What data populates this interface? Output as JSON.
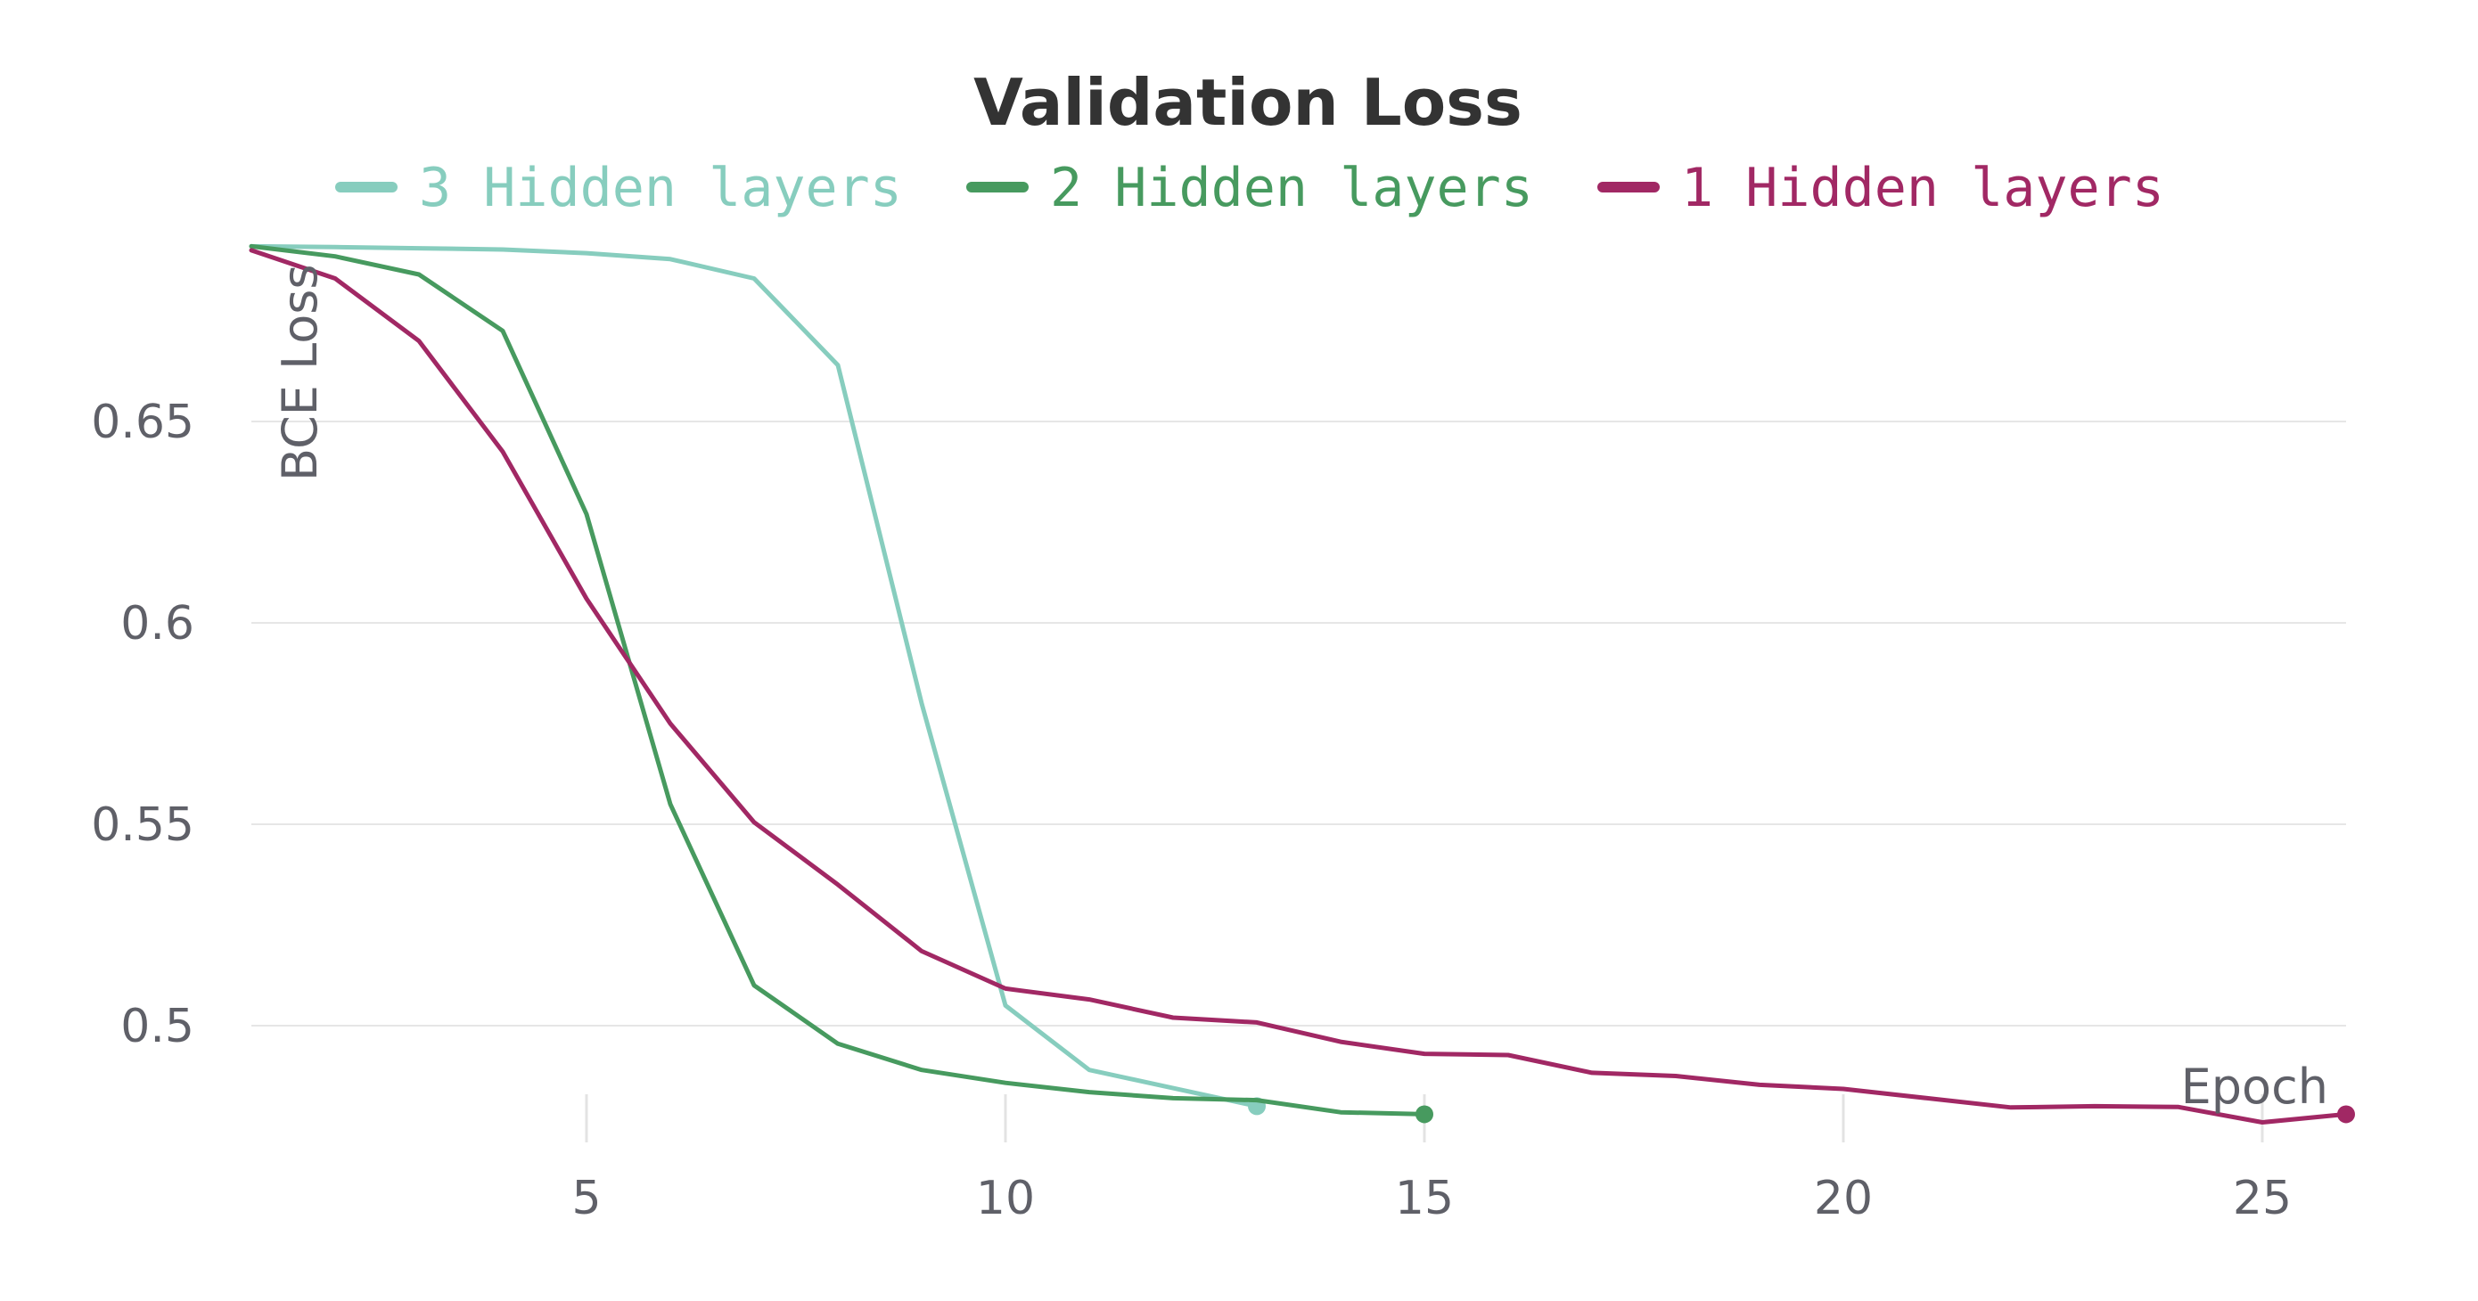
{
  "chart_data": {
    "type": "line",
    "title": "Validation Loss",
    "xlabel": "Epoch",
    "ylabel": "BCE Loss",
    "xlim": [
      1,
      26
    ],
    "ylim": [
      0.47,
      0.695
    ],
    "x_ticks": [
      5,
      10,
      15,
      20,
      25
    ],
    "y_ticks": [
      0.5,
      0.55,
      0.6,
      0.65
    ],
    "y_tick_labels": [
      "0.5",
      "0.55",
      "0.6",
      "0.65"
    ],
    "grid": "horizontal",
    "legend_position": "top",
    "series": [
      {
        "name": "3 Hidden layers",
        "color": "#87cdbe",
        "x": [
          1,
          2,
          3,
          4,
          5,
          6,
          7,
          8,
          9,
          10,
          11,
          12,
          13
        ],
        "y": [
          0.6935,
          0.6933,
          0.693,
          0.6927,
          0.6918,
          0.6903,
          0.6855,
          0.664,
          0.58,
          0.505,
          0.489,
          0.4845,
          0.48
        ]
      },
      {
        "name": "2 Hidden layers",
        "color": "#479a5f",
        "x": [
          1,
          2,
          3,
          4,
          5,
          6,
          7,
          8,
          9,
          10,
          11,
          12,
          13,
          14,
          15
        ],
        "y": [
          0.6935,
          0.691,
          0.6865,
          0.6725,
          0.627,
          0.555,
          0.51,
          0.4955,
          0.489,
          0.4858,
          0.4835,
          0.482,
          0.4815,
          0.4785,
          0.478
        ]
      },
      {
        "name": "1 Hidden layers",
        "color": "#a12864",
        "x": [
          1,
          2,
          3,
          4,
          5,
          6,
          7,
          8,
          9,
          10,
          11,
          12,
          13,
          14,
          15,
          16,
          17,
          18,
          19,
          20,
          21,
          22,
          23,
          24,
          25,
          26
        ],
        "y": [
          0.6925,
          0.6855,
          0.67,
          0.6425,
          0.606,
          0.575,
          0.5505,
          0.535,
          0.5185,
          0.5092,
          0.5065,
          0.502,
          0.5008,
          0.496,
          0.493,
          0.4927,
          0.4883,
          0.4875,
          0.4853,
          0.4843,
          0.482,
          0.4797,
          0.48,
          0.4798,
          0.476,
          0.478
        ]
      }
    ]
  }
}
